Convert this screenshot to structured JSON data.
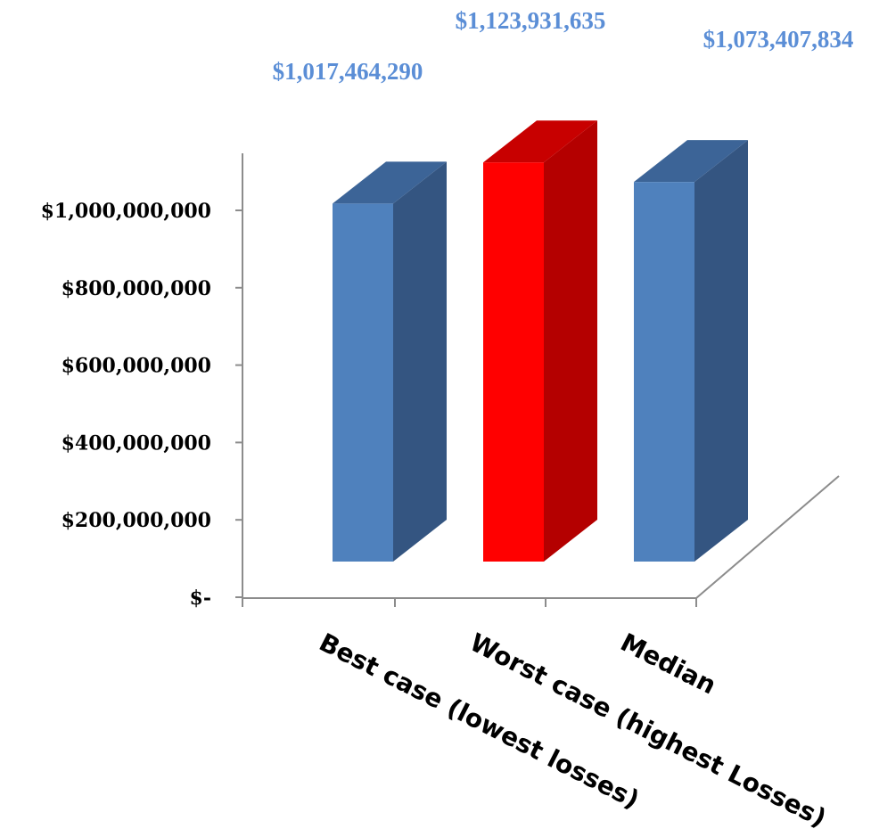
{
  "chart_data": {
    "type": "bar",
    "style": "3d-column",
    "categories": [
      "Best case (lowest losses)",
      "Worst case (highest Losses)",
      "Median"
    ],
    "values": [
      1017464290,
      1123931635,
      1073407834
    ],
    "value_labels": [
      "$1,017,464,290",
      "$1,123,931,635",
      "$1,073,407,834"
    ],
    "bar_colors": [
      "#4f81bd",
      "#ff0000",
      "#4f81bd"
    ],
    "side_colors": [
      "#345581",
      "#b40000",
      "#345581"
    ],
    "top_colors": [
      "#3c6497",
      "#c80000",
      "#3c6497"
    ],
    "data_label_color": "#5b8ed6",
    "ylim": [
      0,
      1000000000
    ],
    "y_ticks": [
      0,
      200000000,
      400000000,
      600000000,
      800000000,
      1000000000
    ],
    "y_tick_labels": [
      "$-",
      "$200,000,000",
      "$400,000,000",
      "$600,000,000",
      "$800,000,000",
      "$1,000,000,000"
    ],
    "grid": false,
    "legend": "none"
  }
}
